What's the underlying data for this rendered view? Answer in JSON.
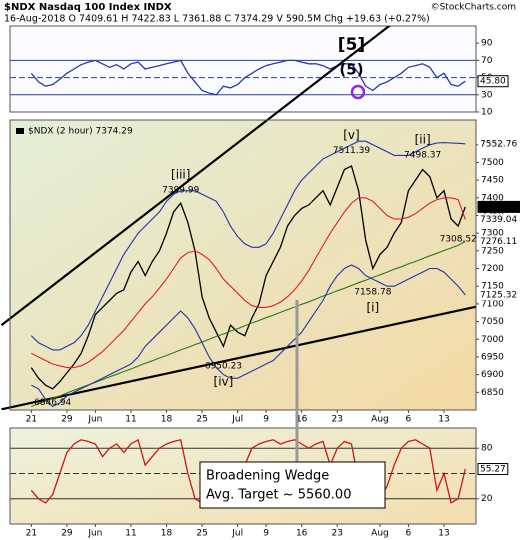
{
  "header": {
    "symbol": "$NDX Nasdaq 100 Index INDX",
    "quote": "16-Aug-2018  O 7409.61  H 7422.83  L 7361.88  C 7374.29  V 590.5M  Chg +19.63 (+0.27%)",
    "credit": "©StockCharts.com"
  },
  "chart_data": [
    {
      "type": "line",
      "x": [
        0,
        1,
        2,
        3,
        4,
        5,
        6,
        7,
        8,
        9,
        10,
        11,
        12,
        13,
        14,
        15,
        16,
        17,
        18,
        19,
        20,
        21,
        22,
        23,
        24,
        25,
        26,
        27,
        28,
        29,
        30,
        31,
        32,
        33,
        34,
        35,
        36,
        37,
        38,
        39,
        40,
        41,
        42,
        43,
        44,
        45,
        46,
        47,
        48,
        49,
        50,
        51,
        52,
        53,
        54,
        55,
        56,
        57,
        58,
        59,
        60,
        61
      ],
      "xlim": [
        -3,
        62.5
      ],
      "ylim": [
        10,
        110
      ],
      "yticks": [
        10,
        30,
        50,
        70,
        90
      ],
      "ref_lines": [
        30,
        50,
        70
      ],
      "series": [
        {
          "color": "#2a3aa8",
          "values": [
            55,
            45,
            40,
            42,
            48,
            55,
            60,
            65,
            68,
            70,
            66,
            62,
            65,
            60,
            66,
            68,
            60,
            62,
            64,
            66,
            68,
            70,
            55,
            45,
            35,
            32,
            30,
            40,
            38,
            42,
            50,
            55,
            60,
            64,
            66,
            68,
            70,
            70,
            68,
            66,
            66,
            64,
            60,
            64,
            66,
            66,
            55,
            40,
            35,
            42,
            45,
            50,
            55,
            62,
            64,
            66,
            62,
            50,
            55,
            42,
            40,
            45.8
          ],
          "value_labels": [
            null,
            null,
            null,
            null,
            null,
            null,
            null,
            null,
            null,
            null,
            null,
            null,
            null,
            null,
            null,
            null,
            null,
            null,
            null,
            null,
            null,
            null,
            null,
            null,
            null,
            null,
            null,
            null,
            null,
            null,
            null,
            null,
            null,
            null,
            null,
            null,
            null,
            null,
            null,
            null,
            null,
            null,
            null,
            null,
            null,
            null,
            null,
            null,
            null,
            null,
            null,
            null,
            null,
            null,
            null,
            null,
            null,
            null,
            null,
            null,
            null,
            "45.80"
          ]
        }
      ],
      "wave_labels": [
        {
          "text": "[5]",
          "x": 45,
          "color": "#1a3fd0"
        },
        {
          "text": "(5)",
          "x": 45,
          "color": "#000000"
        }
      ]
    },
    {
      "type": "line",
      "title": "$NDX (2 hour) 7374.29",
      "x": [
        0,
        1,
        2,
        3,
        4,
        5,
        6,
        7,
        8,
        9,
        10,
        11,
        12,
        13,
        14,
        15,
        16,
        17,
        18,
        19,
        20,
        21,
        22,
        23,
        24,
        25,
        26,
        27,
        28,
        29,
        30,
        31,
        32,
        33,
        34,
        35,
        36,
        37,
        38,
        39,
        40,
        41,
        42,
        43,
        44,
        45,
        46,
        47,
        48,
        49,
        50,
        51,
        52,
        53,
        54,
        55,
        56,
        57,
        58,
        59,
        60,
        61
      ],
      "xlim": [
        -3,
        62.5
      ],
      "ylim": [
        6800,
        7620
      ],
      "yticks": [
        6850,
        6900,
        6950,
        7000,
        7050,
        7100,
        7150,
        7200,
        7250,
        7300,
        7350,
        7400,
        7450,
        7500,
        7550
      ],
      "xticks": [
        {
          "value": 0,
          "label": "21"
        },
        {
          "value": 5,
          "label": "29"
        },
        {
          "value": 9,
          "label": "Jun"
        },
        {
          "value": 14,
          "label": "11"
        },
        {
          "value": 19,
          "label": "18"
        },
        {
          "value": 24,
          "label": "25"
        },
        {
          "value": 29,
          "label": "Jul"
        },
        {
          "value": 33,
          "label": "9"
        },
        {
          "value": 38,
          "label": "16"
        },
        {
          "value": 43,
          "label": "23"
        },
        {
          "value": 49,
          "label": "Aug"
        },
        {
          "value": 53,
          "label": "6"
        },
        {
          "value": 58,
          "label": "13"
        }
      ],
      "series": [
        {
          "color": "#000000",
          "values": [
            6920,
            6890,
            6870,
            6860,
            6880,
            6905,
            6930,
            6960,
            7010,
            7070,
            7090,
            7110,
            7130,
            7140,
            7190,
            7220,
            7180,
            7220,
            7250,
            7300,
            7360,
            7385,
            7330,
            7250,
            7120,
            7060,
            7020,
            6980,
            7040,
            7020,
            7010,
            7060,
            7100,
            7180,
            7220,
            7260,
            7320,
            7350,
            7370,
            7380,
            7400,
            7420,
            7380,
            7430,
            7480,
            7490,
            7420,
            7280,
            7200,
            7240,
            7260,
            7300,
            7330,
            7420,
            7450,
            7480,
            7460,
            7400,
            7420,
            7340,
            7320,
            7374.29
          ]
        },
        {
          "color": "#2233aa",
          "values": [
            7010,
            6990,
            6980,
            6970,
            6970,
            6980,
            6990,
            7010,
            7040,
            7080,
            7120,
            7160,
            7200,
            7240,
            7270,
            7300,
            7320,
            7340,
            7360,
            7390,
            7410,
            7420,
            7420,
            7420,
            7410,
            7400,
            7390,
            7360,
            7320,
            7290,
            7270,
            7260,
            7260,
            7270,
            7300,
            7340,
            7380,
            7420,
            7450,
            7470,
            7490,
            7510,
            7520,
            7530,
            7540,
            7550,
            7560,
            7560,
            7550,
            7540,
            7530,
            7520,
            7520,
            7520,
            7530,
            7540,
            7550,
            7555,
            7556,
            7555,
            7554,
            7552.76
          ]
        },
        {
          "color": "#e02020",
          "values": [
            6960,
            6950,
            6940,
            6930,
            6925,
            6920,
            6920,
            6925,
            6935,
            6950,
            6965,
            6985,
            7005,
            7025,
            7050,
            7075,
            7100,
            7120,
            7145,
            7170,
            7200,
            7230,
            7245,
            7250,
            7240,
            7225,
            7200,
            7170,
            7150,
            7130,
            7110,
            7095,
            7090,
            7090,
            7095,
            7105,
            7120,
            7140,
            7165,
            7195,
            7230,
            7265,
            7300,
            7330,
            7360,
            7385,
            7400,
            7400,
            7390,
            7370,
            7350,
            7340,
            7340,
            7345,
            7355,
            7370,
            7385,
            7395,
            7400,
            7400,
            7395,
            7339.04
          ]
        },
        {
          "color": "#2a7a1a",
          "values": [
            6810,
            6818,
            6825,
            6833,
            6840,
            6848,
            6856,
            6863,
            6871,
            6878,
            6886,
            6894,
            6901,
            6909,
            6916,
            6924,
            6932,
            6939,
            6947,
            6954,
            6962,
            6970,
            6977,
            6985,
            6992,
            7000,
            7008,
            7015,
            7023,
            7030,
            7038,
            7046,
            7053,
            7061,
            7068,
            7076,
            7084,
            7091,
            7099,
            7106,
            7114,
            7122,
            7129,
            7137,
            7144,
            7152,
            7160,
            7167,
            7175,
            7182,
            7190,
            7198,
            7205,
            7213,
            7220,
            7228,
            7236,
            7243,
            7251,
            7258,
            7266,
            7276.11
          ]
        },
        {
          "color": "#2233aa",
          "values": [
            6870,
            6860,
            6830,
            6810,
            6820,
            6840,
            6850,
            6860,
            6870,
            6880,
            6890,
            6900,
            6910,
            6920,
            6930,
            6950,
            6980,
            7000,
            7020,
            7040,
            7060,
            7080,
            7060,
            7030,
            6990,
            6950,
            6920,
            6900,
            6890,
            6890,
            6900,
            6910,
            6920,
            6930,
            6940,
            6960,
            6980,
            7000,
            7020,
            7050,
            7080,
            7110,
            7150,
            7180,
            7200,
            7210,
            7200,
            7180,
            7170,
            7160,
            7150,
            7150,
            7160,
            7170,
            7180,
            7190,
            7200,
            7200,
            7190,
            7170,
            7150,
            7125.32
          ]
        }
      ],
      "trendlines": [
        {
          "x": [
            -4.2,
            63
          ],
          "y": [
            7040,
            8083
          ]
        },
        {
          "x": [
            -4.2,
            68
          ],
          "y": [
            6802,
            7116
          ]
        }
      ],
      "pivots": [
        {
          "x": 45,
          "value": 7511.39
        },
        {
          "x": 55,
          "value": 7498.37
        },
        {
          "x": 21,
          "value": 7399.99
        },
        {
          "x": 60,
          "value": 7308.52
        },
        {
          "x": 48,
          "value": 7158.78
        },
        {
          "x": 27,
          "value": 6950.23
        },
        {
          "x": 3,
          "value": 6846.94
        }
      ],
      "wave_labels": [
        {
          "text": "[v]",
          "x": 45,
          "color": "#d02010"
        },
        {
          "text": "[ii]",
          "x": 55,
          "color": "#d02010"
        },
        {
          "text": "[iii]",
          "x": 21,
          "color": "#d02010"
        },
        {
          "text": "[i]",
          "x": 48,
          "color": "#d02010"
        },
        {
          "text": "[iv]",
          "x": 27,
          "color": "#d02010"
        }
      ]
    },
    {
      "type": "line",
      "x": [
        0,
        1,
        2,
        3,
        4,
        5,
        6,
        7,
        8,
        9,
        10,
        11,
        12,
        13,
        14,
        15,
        16,
        17,
        18,
        19,
        20,
        21,
        22,
        23,
        24,
        25,
        26,
        27,
        28,
        29,
        30,
        31,
        32,
        33,
        34,
        35,
        36,
        37,
        38,
        39,
        40,
        41,
        42,
        43,
        44,
        45,
        46,
        47,
        48,
        49,
        50,
        51,
        52,
        53,
        54,
        55,
        56,
        57,
        58,
        59,
        60,
        61
      ],
      "xlim": [
        -3,
        62.5
      ],
      "ylim": [
        -10,
        104
      ],
      "yticks": [
        20,
        80
      ],
      "xticks": [
        {
          "value": 0,
          "label": "21"
        },
        {
          "value": 5,
          "label": "29"
        },
        {
          "value": 9,
          "label": "Jun"
        },
        {
          "value": 14,
          "label": "11"
        },
        {
          "value": 19,
          "label": "18"
        },
        {
          "value": 24,
          "label": "25"
        },
        {
          "value": 29,
          "label": "Jul"
        },
        {
          "value": 33,
          "label": "9"
        },
        {
          "value": 38,
          "label": "16"
        },
        {
          "value": 43,
          "label": "23"
        },
        {
          "value": 49,
          "label": "Aug"
        },
        {
          "value": 53,
          "label": "6"
        },
        {
          "value": 58,
          "label": "13"
        }
      ],
      "ref_lines": [
        20,
        50,
        80
      ],
      "series": [
        {
          "color": "#c81818",
          "values": [
            30,
            20,
            15,
            25,
            50,
            75,
            85,
            90,
            88,
            85,
            70,
            80,
            85,
            75,
            85,
            90,
            60,
            70,
            80,
            85,
            88,
            90,
            50,
            20,
            15,
            10,
            12,
            40,
            30,
            35,
            60,
            80,
            85,
            88,
            90,
            85,
            88,
            90,
            85,
            80,
            85,
            88,
            60,
            80,
            88,
            85,
            40,
            15,
            10,
            20,
            35,
            60,
            80,
            88,
            90,
            85,
            80,
            30,
            50,
            15,
            20,
            55.27
          ]
        }
      ],
      "note": [
        "Broadening Wedge",
        "Avg. Target ~ 5560.00"
      ]
    }
  ]
}
